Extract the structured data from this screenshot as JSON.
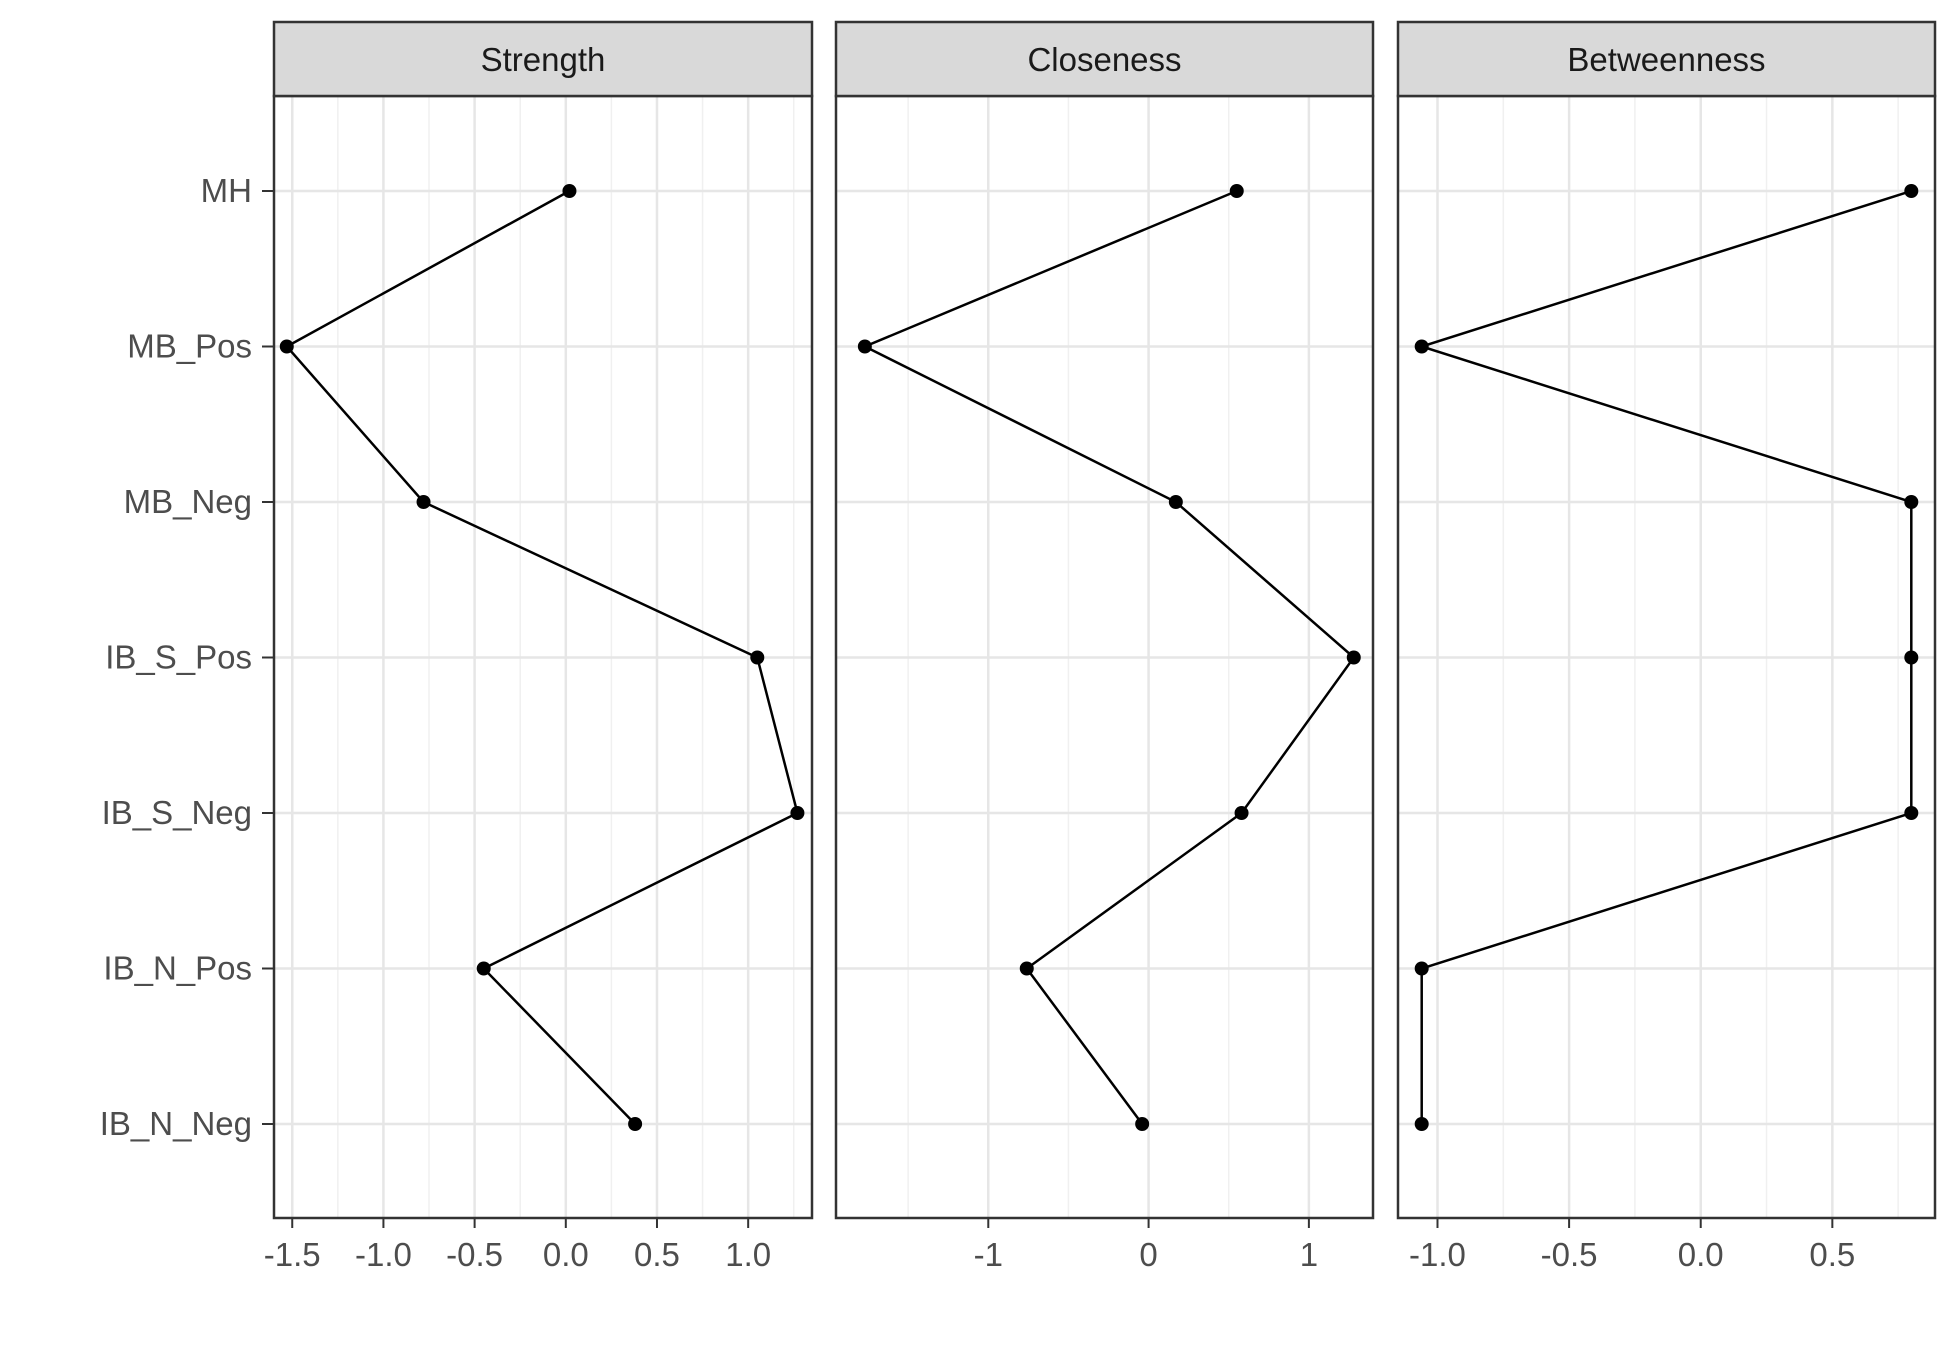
{
  "chart_data": {
    "type": "line",
    "categories": [
      "MH",
      "MB_Pos",
      "MB_Neg",
      "IB_S_Pos",
      "IB_S_Neg",
      "IB_N_Pos",
      "IB_N_Neg"
    ],
    "panels": [
      {
        "title": "Strength",
        "xlim": [
          -1.6,
          1.35
        ],
        "xticks": [
          -1.5,
          -1.0,
          -0.5,
          0.0,
          0.5,
          1.0
        ],
        "xtick_labels": [
          "-1.5",
          "-1.0",
          "-0.5",
          "0.0",
          "0.5",
          "1.0"
        ],
        "values": [
          0.02,
          -1.53,
          -0.78,
          1.05,
          1.27,
          -0.45,
          0.38
        ]
      },
      {
        "title": "Closeness",
        "xlim": [
          -1.95,
          1.4
        ],
        "xticks": [
          -1,
          0,
          1
        ],
        "xtick_labels": [
          "-1",
          "0",
          "1"
        ],
        "values": [
          0.55,
          -1.77,
          0.17,
          1.28,
          0.58,
          -0.76,
          -0.04
        ]
      },
      {
        "title": "Betweenness",
        "xlim": [
          -1.15,
          0.89
        ],
        "xticks": [
          -1.0,
          -0.5,
          0.0,
          0.5
        ],
        "xtick_labels": [
          "-1.0",
          "-0.5",
          "0.0",
          "0.5"
        ],
        "values": [
          0.8,
          -1.06,
          0.8,
          0.8,
          0.8,
          -1.06,
          -1.06
        ]
      }
    ],
    "grid": true,
    "legend": "none"
  }
}
